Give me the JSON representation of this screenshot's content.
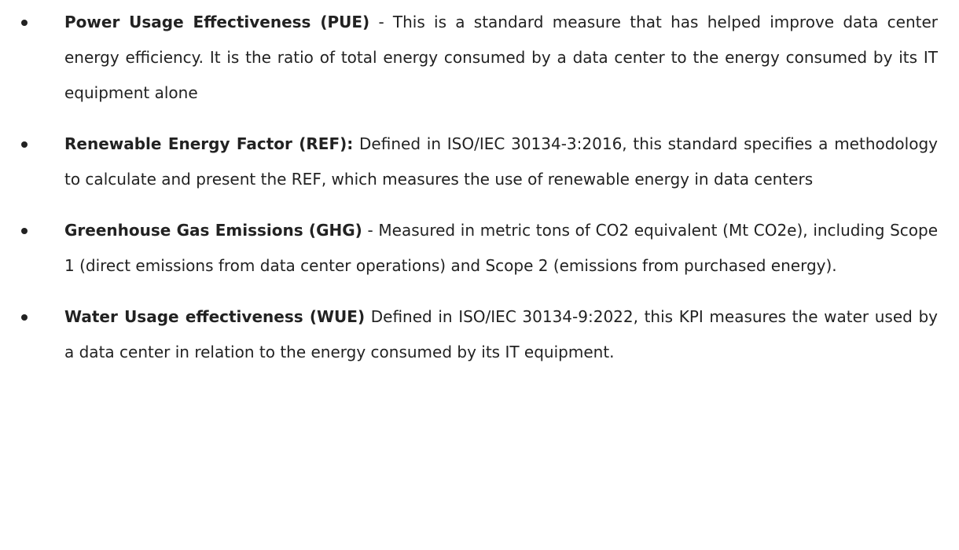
{
  "items": [
    {
      "term": "Power Usage Effectiveness (PUE)",
      "text": "- This is a standard measure that has helped improve data center energy efficiency. It is the ratio of total energy consumed by a data center to the energy consumed by its IT equipment alone"
    },
    {
      "term": "Renewable Energy Factor (REF):",
      "text": "Defined in ISO/IEC 30134-3:2016, this standard specifies a methodology to calculate and present the REF, which measures the use of renewable energy in data centers"
    },
    {
      "term": "Greenhouse Gas Emissions (GHG)",
      "text": "- Measured in metric tons of CO2 equivalent (Mt CO2e), including Scope 1 (direct emissions from data center operations) and Scope 2 (emissions from purchased energy)."
    },
    {
      "term": "Water Usage effectiveness (WUE)",
      "text": "Defined in ISO/IEC 30134-9:2022, this KPI measures the water used by a data center in relation to the energy consumed by its IT equipment."
    }
  ]
}
